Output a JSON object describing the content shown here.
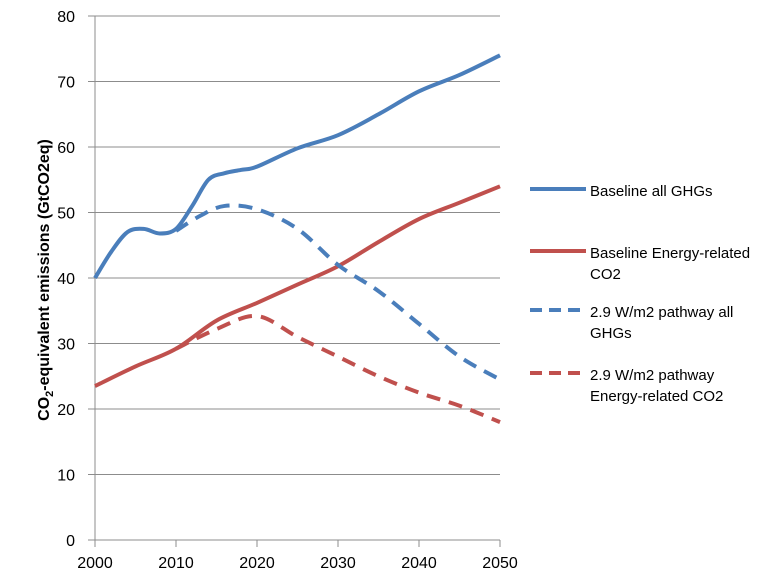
{
  "chart_data": {
    "type": "line",
    "title": "",
    "xlabel": "",
    "ylabel": "CO₂-equivalent emissions (GtCO2eq)",
    "ylabel_parts": {
      "pre": "CO",
      "sub": "2",
      "post": "-equivalent emissions (GtCO2eq)"
    },
    "xlim": [
      2000,
      2050
    ],
    "ylim": [
      0,
      80
    ],
    "x_ticks": [
      "2000",
      "2010",
      "2020",
      "2030",
      "2040",
      "2050"
    ],
    "y_ticks": [
      "0",
      "10",
      "20",
      "30",
      "40",
      "50",
      "60",
      "70",
      "80"
    ],
    "grid": "horizontal",
    "legend_position": "right",
    "series": [
      {
        "name": "Baseline all GHGs",
        "color": "#4a7ebb",
        "style": "solid",
        "x": [
          2000,
          2002,
          2004,
          2006,
          2008,
          2010,
          2012,
          2014,
          2016,
          2018,
          2020,
          2025,
          2030,
          2035,
          2040,
          2045,
          2050
        ],
        "y": [
          40,
          44,
          47,
          47.5,
          46.8,
          47.5,
          51,
          55,
          56,
          56.5,
          57,
          59.8,
          61.8,
          65,
          68.5,
          71,
          74
        ]
      },
      {
        "name": "Baseline Energy-related CO2",
        "color": "#c0504d",
        "style": "solid",
        "x": [
          2000,
          2005,
          2010,
          2015,
          2020,
          2025,
          2030,
          2035,
          2040,
          2045,
          2050
        ],
        "y": [
          23.5,
          26.5,
          29.2,
          33.5,
          36.2,
          39,
          41.8,
          45.5,
          49,
          51.5,
          54
        ]
      },
      {
        "name": "2.9 W/m2 pathway all GHGs",
        "color": "#4a7ebb",
        "style": "dashed",
        "x": [
          2010,
          2013,
          2016,
          2020,
          2025,
          2030,
          2035,
          2040,
          2045,
          2050
        ],
        "y": [
          47.2,
          49.5,
          51,
          50.5,
          47.5,
          42,
          38,
          33,
          28,
          24.5
        ]
      },
      {
        "name": "2.9 W/m2 pathway Energy-related CO2",
        "color": "#c0504d",
        "style": "dashed",
        "x": [
          2010,
          2015,
          2020,
          2025,
          2030,
          2035,
          2040,
          2045,
          2050
        ],
        "y": [
          29.2,
          32.2,
          34.2,
          31,
          28,
          25,
          22.5,
          20.5,
          18
        ]
      }
    ]
  }
}
